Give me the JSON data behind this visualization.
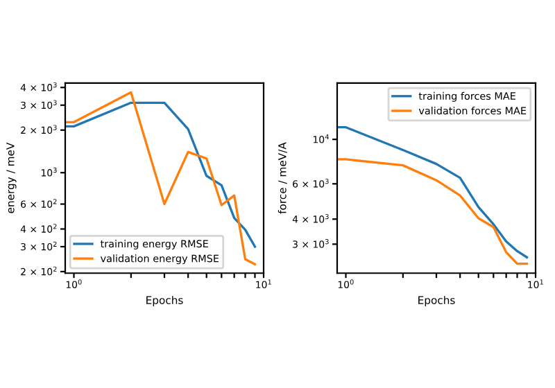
{
  "chart_data": [
    {
      "type": "line",
      "xlabel": "Epochs",
      "ylabel": "energy / meV",
      "log": "xy",
      "grid": false,
      "legend": "bottom left",
      "marker": "none",
      "line_style": "solid",
      "x": [
        0.9,
        1,
        2,
        3,
        4,
        5,
        6,
        7,
        8,
        9
      ],
      "xlim": [
        0.9,
        10
      ],
      "xticks": [
        {
          "value": 1,
          "label": "10$^{0}$"
        },
        {
          "value": 2,
          "label": null
        },
        {
          "value": 3,
          "label": null
        },
        {
          "value": 4,
          "label": null
        },
        {
          "value": 5,
          "label": null
        },
        {
          "value": 6,
          "label": null
        },
        {
          "value": 7,
          "label": null
        },
        {
          "value": 8,
          "label": null
        },
        {
          "value": 9,
          "label": null
        },
        {
          "value": 10,
          "label": "10$^{1}$"
        }
      ],
      "ylim": [
        195,
        4300
      ],
      "yticks": [
        {
          "value": 200,
          "label": "2 × 10$^{2}$"
        },
        {
          "value": 300,
          "label": "3 × 10$^{2}$"
        },
        {
          "value": 400,
          "label": "4 × 10$^{2}$"
        },
        {
          "value": 600,
          "label": "6 × 10$^{2}$"
        },
        {
          "value": 1000,
          "label": "10$^{3}$"
        },
        {
          "value": 2000,
          "label": "2 × 10$^{3}$"
        },
        {
          "value": 3000,
          "label": "3 × 10$^{3}$"
        },
        {
          "value": 4000,
          "label": "4 × 10$^{3}$"
        }
      ],
      "series": [
        {
          "name": "training energy RMSE",
          "color": "#1f77b4",
          "values": [
            2125,
            2125,
            3120,
            3120,
            2030,
            950,
            815,
            478,
            395,
            300
          ]
        },
        {
          "name": "validation energy RMSE",
          "color": "#ff7f0e",
          "values": [
            2275,
            2275,
            3700,
            600,
            1400,
            1260,
            590,
            690,
            245,
            225
          ]
        }
      ]
    },
    {
      "type": "line",
      "xlabel": "Epochs",
      "ylabel": "force / meV/A",
      "log": "xy",
      "grid": false,
      "legend": "top right",
      "marker": "none",
      "line_style": "solid",
      "x": [
        0.9,
        1,
        2,
        3,
        4,
        5,
        6,
        7,
        8,
        9
      ],
      "xlim": [
        0.9,
        10
      ],
      "xticks": [
        {
          "value": 1,
          "label": "10$^{0}$"
        },
        {
          "value": 2,
          "label": null
        },
        {
          "value": 3,
          "label": null
        },
        {
          "value": 4,
          "label": null
        },
        {
          "value": 5,
          "label": null
        },
        {
          "value": 6,
          "label": null
        },
        {
          "value": 7,
          "label": null
        },
        {
          "value": 8,
          "label": null
        },
        {
          "value": 9,
          "label": null
        },
        {
          "value": 10,
          "label": "10$^{1}$"
        }
      ],
      "ylim": [
        2150,
        19100
      ],
      "yticks": [
        {
          "value": 3000,
          "label": "3 × 10$^{3}$"
        },
        {
          "value": 4000,
          "label": "4 × 10$^{3}$"
        },
        {
          "value": 6000,
          "label": "6 × 10$^{3}$"
        },
        {
          "value": 10000,
          "label": "10$^{4}$"
        }
      ],
      "series": [
        {
          "name": "training forces MAE",
          "color": "#1f77b4",
          "values": [
            11490,
            11490,
            8850,
            7540,
            6430,
            4590,
            3770,
            3095,
            2770,
            2580
          ]
        },
        {
          "name": "validation forces MAE",
          "color": "#ff7f0e",
          "values": [
            7950,
            7950,
            7420,
            6250,
            5245,
            4040,
            3650,
            2735,
            2395,
            2395
          ]
        }
      ]
    }
  ]
}
